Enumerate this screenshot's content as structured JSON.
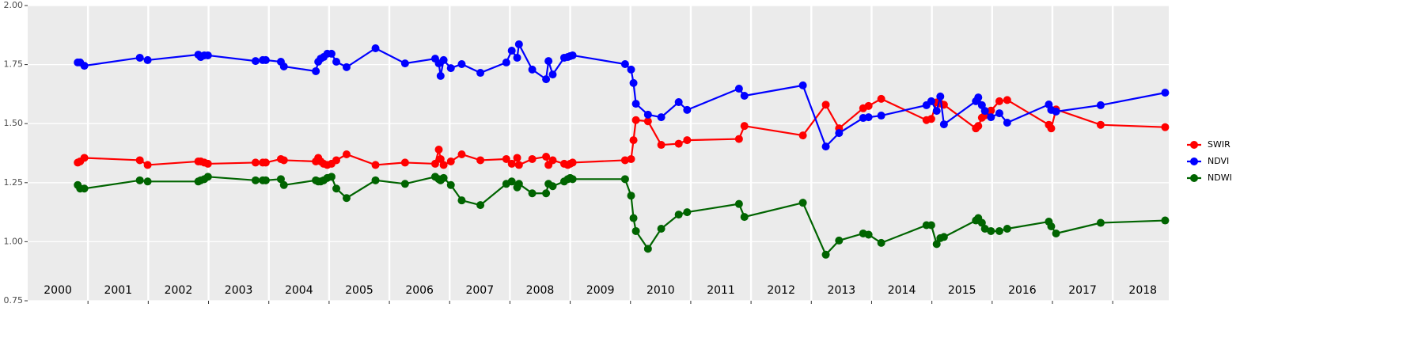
{
  "chart_data": {
    "type": "line",
    "x": [
      2000.83,
      2000.87,
      2000.94,
      2001.86,
      2001.99,
      2002.83,
      2002.87,
      2002.93,
      2002.99,
      2003.78,
      2003.9,
      2003.95,
      2004.2,
      2004.25,
      2004.78,
      2004.82,
      2004.86,
      2004.91,
      2004.97,
      2005.04,
      2005.12,
      2005.29,
      2005.77,
      2006.26,
      2006.76,
      2006.82,
      2006.85,
      2006.9,
      2007.02,
      2007.2,
      2007.51,
      2007.94,
      2008.03,
      2008.12,
      2008.15,
      2008.37,
      2008.6,
      2008.64,
      2008.71,
      2008.9,
      2008.96,
      2009.0,
      2009.04,
      2009.91,
      2010.01,
      2010.05,
      2010.09,
      2010.29,
      2010.51,
      2010.8,
      2010.94,
      2011.8,
      2011.89,
      2012.86,
      2013.24,
      2013.46,
      2013.86,
      2013.95,
      2014.16,
      2014.91,
      2014.99,
      2015.08,
      2015.14,
      2015.2,
      2015.73,
      2015.77,
      2015.83,
      2015.88,
      2015.98,
      2016.12,
      2016.25,
      2016.94,
      2016.98,
      2017.06,
      2017.8,
      2018.87
    ],
    "series": [
      {
        "name": "SWIR",
        "color": "#ff0000",
        "values": [
          1.335,
          1.34,
          1.355,
          1.345,
          1.325,
          1.34,
          1.34,
          1.335,
          1.33,
          1.335,
          1.335,
          1.335,
          1.35,
          1.345,
          1.34,
          1.355,
          1.34,
          1.33,
          1.325,
          1.33,
          1.345,
          1.37,
          1.325,
          1.335,
          1.33,
          1.39,
          1.35,
          1.325,
          1.34,
          1.37,
          1.345,
          1.35,
          1.33,
          1.355,
          1.325,
          1.35,
          1.36,
          1.325,
          1.345,
          1.33,
          1.325,
          1.33,
          1.335,
          1.345,
          1.35,
          1.43,
          1.515,
          1.51,
          1.41,
          1.415,
          1.43,
          1.435,
          1.49,
          1.45,
          1.58,
          1.48,
          1.565,
          1.575,
          1.605,
          1.515,
          1.52,
          1.59,
          1.585,
          1.58,
          1.48,
          1.49,
          1.525,
          1.535,
          1.555,
          1.595,
          1.6,
          1.495,
          1.48,
          1.56,
          1.495,
          1.485
        ]
      },
      {
        "name": "NDVI",
        "color": "#0000ff",
        "values": [
          1.759,
          1.759,
          1.745,
          1.779,
          1.769,
          1.792,
          1.782,
          1.789,
          1.789,
          1.765,
          1.769,
          1.769,
          1.762,
          1.742,
          1.722,
          1.762,
          1.775,
          1.782,
          1.796,
          1.796,
          1.762,
          1.739,
          1.819,
          1.755,
          1.775,
          1.755,
          1.702,
          1.769,
          1.735,
          1.752,
          1.715,
          1.759,
          1.809,
          1.779,
          1.836,
          1.729,
          1.688,
          1.765,
          1.708,
          1.779,
          1.782,
          1.786,
          1.789,
          1.752,
          1.729,
          1.672,
          1.584,
          1.538,
          1.527,
          1.591,
          1.558,
          1.648,
          1.618,
          1.662,
          1.403,
          1.46,
          1.524,
          1.527,
          1.534,
          1.578,
          1.595,
          1.554,
          1.615,
          1.497,
          1.595,
          1.611,
          1.578,
          1.554,
          1.527,
          1.544,
          1.504,
          1.581,
          1.558,
          1.551,
          1.578,
          1.631
        ]
      },
      {
        "name": "NDWI",
        "color": "#006400",
        "values": [
          1.24,
          1.225,
          1.225,
          1.26,
          1.255,
          1.255,
          1.26,
          1.265,
          1.275,
          1.26,
          1.26,
          1.26,
          1.265,
          1.24,
          1.26,
          1.255,
          1.255,
          1.26,
          1.27,
          1.275,
          1.225,
          1.185,
          1.26,
          1.245,
          1.275,
          1.265,
          1.26,
          1.27,
          1.24,
          1.175,
          1.155,
          1.245,
          1.255,
          1.23,
          1.245,
          1.205,
          1.205,
          1.245,
          1.235,
          1.255,
          1.265,
          1.27,
          1.265,
          1.265,
          1.195,
          1.1,
          1.045,
          0.97,
          1.055,
          1.115,
          1.125,
          1.16,
          1.105,
          1.165,
          0.945,
          1.005,
          1.035,
          1.03,
          0.995,
          1.07,
          1.07,
          0.99,
          1.015,
          1.02,
          1.09,
          1.1,
          1.08,
          1.055,
          1.045,
          1.045,
          1.055,
          1.085,
          1.065,
          1.035,
          1.08,
          1.09
        ]
      }
    ],
    "xlim": [
      2000,
      2018.93
    ],
    "xticks": [
      2001,
      2002,
      2003,
      2004,
      2005,
      2006,
      2007,
      2008,
      2009,
      2010,
      2011,
      2012,
      2013,
      2014,
      2015,
      2016,
      2017,
      2018
    ],
    "year_labels": [
      2000,
      2001,
      2002,
      2003,
      2004,
      2005,
      2006,
      2007,
      2008,
      2009,
      2010,
      2011,
      2012,
      2013,
      2014,
      2015,
      2016,
      2017,
      2018
    ],
    "ylim": [
      0.75,
      2.0
    ],
    "yticks": [
      {
        "value": 0.75,
        "label": "0.75"
      },
      {
        "value": 1.0,
        "label": "1.00"
      },
      {
        "value": 1.25,
        "label": "1.25"
      },
      {
        "value": 1.5,
        "label": "1.50"
      },
      {
        "value": 1.75,
        "label": "1.75"
      },
      {
        "value": 2.0,
        "label": "2.00"
      }
    ],
    "grid": true,
    "legend": "right"
  }
}
